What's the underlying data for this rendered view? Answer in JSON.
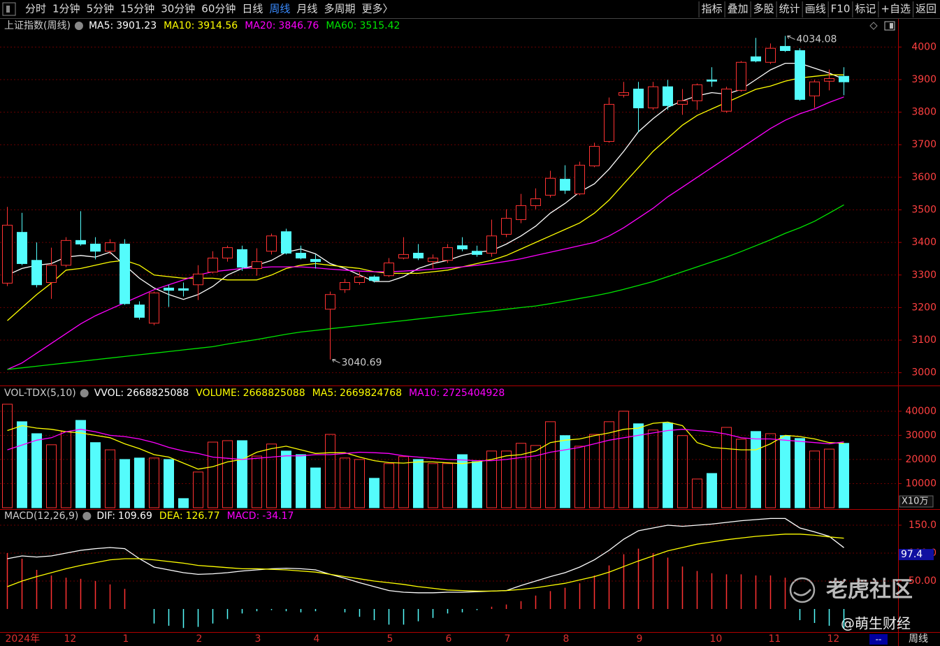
{
  "toolbar": {
    "periods": [
      "分时",
      "1分钟",
      "5分钟",
      "15分钟",
      "30分钟",
      "60分钟",
      "日线",
      "周线",
      "月线",
      "多周期",
      "更多〉"
    ],
    "active": "周线",
    "tools": [
      "指标",
      "叠加",
      "多股",
      "统计",
      "画线",
      "F10",
      "标记",
      "+自选",
      "返回"
    ]
  },
  "chart_data": [
    {
      "type": "candlestick",
      "title": "上证指数(周线)",
      "categories": [
        "2024年",
        null,
        null,
        null,
        "12",
        null,
        null,
        null,
        "1",
        null,
        null,
        null,
        null,
        "2",
        null,
        null,
        null,
        "3",
        null,
        null,
        null,
        "4",
        null,
        null,
        null,
        null,
        "5",
        null,
        null,
        null,
        "6",
        null,
        null,
        null,
        "7",
        null,
        null,
        null,
        "8",
        null,
        null,
        null,
        null,
        "9",
        null,
        null,
        null,
        null,
        "10",
        null,
        null,
        null,
        "11",
        null,
        null,
        null,
        "12",
        null
      ],
      "open": [
        3275,
        3431,
        3345,
        3277,
        3330,
        3406,
        3395,
        3373,
        3395,
        3208,
        3152,
        3260,
        3258,
        3270,
        3309,
        3352,
        3378,
        3320,
        3373,
        3433,
        3367,
        3348,
        3195,
        3255,
        3277,
        3294,
        3298,
        3352,
        3367,
        3341,
        3345,
        3390,
        3373,
        3367,
        3425,
        3470,
        3513,
        3545,
        3594,
        3549,
        3635,
        3710,
        3852,
        3871,
        3813,
        3878,
        3824,
        3835,
        3899,
        3803,
        3867,
        3970,
        3953,
        4002,
        3989,
        3850,
        3895,
        3910
      ],
      "high": [
        3509,
        3491,
        3400,
        3384,
        3416,
        3496,
        3416,
        3410,
        3410,
        3219,
        3249,
        3270,
        3277,
        3330,
        3373,
        3390,
        3390,
        3382,
        3427,
        3442,
        3390,
        3363,
        3249,
        3288,
        3309,
        3299,
        3352,
        3416,
        3395,
        3363,
        3395,
        3416,
        3390,
        3470,
        3502,
        3549,
        3566,
        3620,
        3637,
        3648,
        3706,
        3845,
        3893,
        3893,
        3893,
        3899,
        3871,
        3888,
        3938,
        3878,
        3957,
        4028,
        4011,
        4034.08,
        3996,
        3899,
        3931,
        3938
      ],
      "low": [
        3266,
        3330,
        3262,
        3227,
        3324,
        3390,
        3348,
        3363,
        3208,
        3163,
        3146,
        3202,
        3234,
        3223,
        3305,
        3341,
        3313,
        3298,
        3363,
        3363,
        3348,
        3320,
        3040.69,
        3245,
        3270,
        3277,
        3294,
        3348,
        3346,
        3320,
        3337,
        3373,
        3356,
        3356,
        3416,
        3459,
        3502,
        3538,
        3549,
        3545,
        3631,
        3706,
        3845,
        3738,
        3807,
        3807,
        3792,
        3807,
        3878,
        3798,
        3863,
        3953,
        3948,
        3985,
        3835,
        3813,
        3867,
        3852
      ],
      "close": [
        3453,
        3335,
        3270,
        3330,
        3406,
        3395,
        3373,
        3399,
        3212,
        3170,
        3245,
        3253,
        3253,
        3303,
        3352,
        3384,
        3324,
        3341,
        3420,
        3367,
        3352,
        3341,
        3240,
        3277,
        3294,
        3283,
        3337,
        3363,
        3352,
        3352,
        3384,
        3380,
        3363,
        3420,
        3474,
        3513,
        3534,
        3597,
        3560,
        3637,
        3695,
        3824,
        3860,
        3813,
        3878,
        3820,
        3835,
        3884,
        3895,
        3871,
        3953,
        3957,
        3996,
        3989,
        3839,
        3893,
        3903,
        3893
      ],
      "up_color": "#ff3232",
      "down_color": "#54fcfc",
      "series": [
        {
          "name": "MA5:",
          "color": "#ffffff",
          "values": [
            3300,
            3320,
            3330,
            3335,
            3355,
            3360,
            3355,
            3370,
            3330,
            3290,
            3260,
            3240,
            3225,
            3240,
            3265,
            3300,
            3320,
            3330,
            3345,
            3370,
            3380,
            3365,
            3335,
            3320,
            3300,
            3280,
            3280,
            3295,
            3320,
            3335,
            3345,
            3360,
            3370,
            3375,
            3395,
            3420,
            3450,
            3490,
            3520,
            3555,
            3580,
            3625,
            3680,
            3740,
            3780,
            3815,
            3835,
            3850,
            3860,
            3855,
            3870,
            3900,
            3930,
            3950,
            3950,
            3935,
            3920,
            3901.23
          ]
        },
        {
          "name": "MA10:",
          "color": "#ffff00",
          "values": [
            3160,
            3200,
            3240,
            3275,
            3315,
            3320,
            3330,
            3340,
            3345,
            3330,
            3300,
            3295,
            3290,
            3290,
            3290,
            3285,
            3285,
            3285,
            3300,
            3320,
            3330,
            3335,
            3330,
            3325,
            3320,
            3310,
            3305,
            3305,
            3305,
            3310,
            3315,
            3325,
            3335,
            3345,
            3360,
            3380,
            3400,
            3420,
            3440,
            3460,
            3490,
            3530,
            3580,
            3630,
            3680,
            3720,
            3760,
            3790,
            3810,
            3830,
            3850,
            3870,
            3880,
            3895,
            3905,
            3910,
            3915,
            3914.56
          ]
        },
        {
          "name": "MA20:",
          "color": "#ff00ff",
          "values": [
            3010,
            3030,
            3060,
            3090,
            3120,
            3150,
            3175,
            3195,
            3215,
            3235,
            3255,
            3270,
            3285,
            3300,
            3310,
            3315,
            3320,
            3322,
            3325,
            3325,
            3325,
            3322,
            3318,
            3315,
            3312,
            3310,
            3310,
            3312,
            3315,
            3318,
            3322,
            3325,
            3330,
            3335,
            3342,
            3350,
            3360,
            3370,
            3380,
            3390,
            3400,
            3420,
            3445,
            3475,
            3505,
            3540,
            3570,
            3600,
            3630,
            3660,
            3690,
            3720,
            3750,
            3775,
            3795,
            3810,
            3830,
            3846.76
          ]
        },
        {
          "name": "MA60:",
          "color": "#00e600",
          "values": [
            3010,
            3015,
            3020,
            3025,
            3030,
            3035,
            3040,
            3045,
            3050,
            3055,
            3060,
            3065,
            3070,
            3075,
            3080,
            3088,
            3095,
            3102,
            3110,
            3118,
            3125,
            3130,
            3135,
            3140,
            3145,
            3150,
            3155,
            3160,
            3165,
            3170,
            3175,
            3180,
            3185,
            3190,
            3195,
            3200,
            3205,
            3212,
            3220,
            3228,
            3236,
            3245,
            3256,
            3268,
            3280,
            3295,
            3310,
            3325,
            3340,
            3355,
            3372,
            3390,
            3408,
            3428,
            3445,
            3465,
            3490,
            3515.42
          ]
        }
      ],
      "ylim": [
        2965,
        4050
      ],
      "yticks": [
        3000,
        3100,
        3200,
        3300,
        3400,
        3500,
        3600,
        3700,
        3800,
        3900,
        4000
      ],
      "grid": true
    },
    {
      "type": "bar",
      "title": "VOL-TDX(5,10)",
      "readouts": [
        {
          "label": "VVOL:",
          "value": 2668825088,
          "color": "#ffffff"
        },
        {
          "label": "VOLUME:",
          "value": 2668825088,
          "color": "#ffff00"
        },
        {
          "label": "MA5:",
          "value": 2669824768,
          "color": "#ffff00"
        },
        {
          "label": "MA10:",
          "value": 2725404928,
          "color": "#ff00ff"
        }
      ],
      "values": [
        42900,
        35650,
        30700,
        26100,
        31600,
        36200,
        27000,
        24000,
        20000,
        20600,
        20600,
        20000,
        3800,
        14800,
        27200,
        27800,
        27800,
        21400,
        26400,
        23500,
        22000,
        16500,
        30400,
        20600,
        20000,
        12200,
        18300,
        21200,
        20000,
        18300,
        18300,
        22000,
        19100,
        23500,
        23500,
        26700,
        25800,
        35650,
        29900,
        25500,
        30400,
        35650,
        40000,
        34800,
        32200,
        35100,
        29900,
        11900,
        14200,
        33300,
        28400,
        31600,
        30700,
        29900,
        28700,
        23500,
        24300,
        26688.25
      ],
      "series": [
        {
          "color": "#ffff00",
          "values": [
            32000,
            34000,
            33000,
            32500,
            31500,
            31000,
            30000,
            29000,
            26500,
            24500,
            22000,
            21000,
            18500,
            16000,
            17000,
            19000,
            20000,
            23000,
            24500,
            25500,
            24000,
            22500,
            22800,
            22800,
            21000,
            19500,
            18700,
            18500,
            19000,
            19000,
            18600,
            18300,
            19000,
            20000,
            21500,
            22000,
            23500,
            27000,
            28000,
            28500,
            29900,
            31000,
            32500,
            33000,
            35000,
            35500,
            34000,
            27000,
            25000,
            24500,
            24000,
            24000,
            26500,
            30000,
            29500,
            28500,
            27000,
            26698.25
          ]
        },
        {
          "color": "#ff00ff",
          "values": [
            24000,
            26000,
            28000,
            29000,
            31500,
            32500,
            31500,
            30000,
            29500,
            28500,
            27000,
            25000,
            23500,
            22500,
            21000,
            20500,
            20000,
            20500,
            21000,
            21500,
            21500,
            22000,
            22000,
            22500,
            23000,
            22800,
            22500,
            21500,
            21000,
            20500,
            20000,
            19800,
            19500,
            19500,
            20000,
            20800,
            21500,
            23000,
            24000,
            25000,
            26500,
            28000,
            29000,
            30000,
            31000,
            32000,
            32500,
            32000,
            31500,
            30500,
            29000,
            28500,
            28500,
            28000,
            27500,
            27000,
            26500,
            27254.05
          ]
        }
      ],
      "ylim": [
        0,
        44000
      ],
      "yticks": [
        10000,
        20000,
        30000,
        40000
      ],
      "grid": true,
      "unit": "X10万"
    },
    {
      "type": "macd",
      "title": "MACD(12,26,9)",
      "series": [
        {
          "name": "DIF:",
          "color": "#ffffff",
          "values": [
            90,
            95,
            93,
            95,
            100,
            105,
            108,
            110,
            108,
            90,
            75,
            70,
            65,
            62,
            63,
            65,
            68,
            70,
            72,
            73,
            72,
            70,
            62,
            55,
            47,
            40,
            33,
            30,
            29,
            29,
            30,
            30,
            31,
            32,
            33,
            42,
            50,
            58,
            65,
            75,
            88,
            105,
            125,
            140,
            145,
            150,
            148,
            150,
            152,
            155,
            158,
            160,
            162,
            162,
            145,
            138,
            130,
            109.69
          ]
        },
        {
          "name": "DEA:",
          "color": "#ffff00",
          "values": [
            40,
            50,
            58,
            65,
            72,
            78,
            83,
            88,
            90,
            90,
            88,
            85,
            82,
            78,
            76,
            74,
            72,
            72,
            71,
            70,
            68,
            66,
            62,
            58,
            54,
            50,
            47,
            44,
            40,
            37,
            34,
            33,
            32,
            32,
            33,
            35,
            38,
            42,
            46,
            52,
            58,
            66,
            76,
            86,
            95,
            104,
            110,
            116,
            120,
            124,
            127,
            130,
            132,
            134,
            134,
            132,
            129,
            126.77
          ]
        }
      ],
      "histogram": {
        "name": "MACD:",
        "color": "#ff00ff",
        "values": [
          100,
          90,
          70,
          60,
          56,
          54,
          50,
          44,
          36,
          0,
          -26,
          -30,
          -34,
          -32,
          -26,
          -18,
          -8,
          -4,
          -2,
          -4,
          -6,
          -4,
          0,
          -6,
          -14,
          -20,
          -28,
          -28,
          -22,
          -16,
          -8,
          -6,
          -2,
          4,
          8,
          14,
          24,
          32,
          38,
          46,
          60,
          78,
          98,
          108,
          100,
          92,
          76,
          68,
          64,
          62,
          62,
          60,
          60,
          56,
          -20,
          -25,
          -30,
          -34.17
        ]
      },
      "ylim": [
        -41.25,
        158.75
      ],
      "yticks": [
        {
          "value": 50,
          "label": "50.00"
        },
        {
          "value": 100,
          "label": "100.0"
        },
        {
          "value": 150,
          "label": "150.0"
        }
      ],
      "grid": true,
      "cursor_value": 97.4
    }
  ],
  "footer": {
    "box": "--",
    "period": "周线"
  },
  "watermark": {
    "brand": "老虎社区",
    "author": "@萌生财经"
  }
}
